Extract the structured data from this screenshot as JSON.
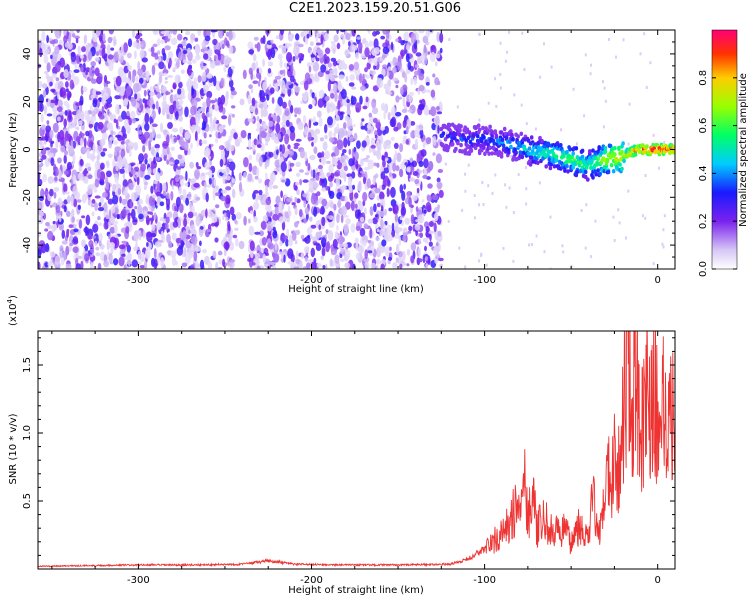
{
  "title": "C2E1.2023.159.20.51.G06",
  "chart_data": [
    {
      "type": "heatmap",
      "xlabel": "Height of straight line (km)",
      "ylabel": "Frequency (Hz)",
      "xlim": [
        -358,
        10
      ],
      "ylim": [
        -50,
        50
      ],
      "xticks": [
        -300,
        -200,
        -100,
        0
      ],
      "xtick_labels": [
        "-300",
        "-200",
        "-100",
        "0"
      ],
      "yticks": [
        -40,
        -20,
        0,
        20,
        40
      ],
      "ytick_labels": [
        "-40",
        "-20",
        "0",
        "20",
        "40"
      ],
      "colorbar": {
        "label": "Normalized spectral amplitude",
        "range": [
          0,
          1
        ],
        "ticks": [
          0,
          0.2,
          0.4,
          0.6,
          0.8
        ],
        "tick_labels": [
          "0.0",
          "0.2",
          "0.4",
          "0.6",
          "0.8"
        ],
        "colormap": "hsv-rainbow"
      },
      "noise_region": {
        "x": [
          -358,
          -125
        ],
        "y": [
          -50,
          50
        ],
        "amplitude": [
          0.05,
          0.3
        ]
      },
      "signal_track": {
        "x": [
          -125,
          -110,
          -100,
          -90,
          -80,
          -70,
          -60,
          -50,
          -40,
          -35,
          -30,
          -20,
          -15,
          -10,
          0,
          10
        ],
        "y": [
          6,
          4,
          4,
          3,
          1,
          -1,
          -2,
          -4,
          -7,
          -5,
          -4,
          -3,
          -1,
          0,
          0,
          0
        ],
        "amplitude": [
          0.3,
          0.35,
          0.35,
          0.4,
          0.45,
          0.5,
          0.55,
          0.6,
          0.55,
          0.6,
          0.7,
          0.75,
          0.85,
          0.9,
          0.95,
          0.9
        ]
      },
      "grid": false
    },
    {
      "type": "line",
      "xlabel": "Height of straight line (km)",
      "ylabel": "SNR (10 * v/v)",
      "yscale_label": "(x10",
      "yscale_exp": "4",
      "yscale_close": ")",
      "xlim": [
        -358,
        10
      ],
      "ylim": [
        0,
        17500
      ],
      "xticks": [
        -300,
        -200,
        -100,
        0
      ],
      "xtick_labels": [
        "-300",
        "-200",
        "-100",
        "0"
      ],
      "yticks": [
        5000,
        10000,
        15000
      ],
      "ytick_labels": [
        "0.5",
        "1.0",
        "1.5"
      ],
      "series": [
        {
          "color": "#ee3333",
          "x": [
            -358,
            -330,
            -300,
            -270,
            -240,
            -225,
            -210,
            -180,
            -150,
            -120,
            -110,
            -100,
            -90,
            -85,
            -80,
            -77,
            -75,
            -72,
            -70,
            -65,
            -60,
            -55,
            -50,
            -45,
            -40,
            -37,
            -35,
            -32,
            -30,
            -27,
            -25,
            -22,
            -20,
            -18,
            -17,
            -15,
            -12,
            -10,
            -7,
            -5,
            -2,
            0,
            3,
            5,
            8,
            10
          ],
          "y": [
            200,
            250,
            300,
            300,
            350,
            600,
            350,
            300,
            300,
            350,
            700,
            1500,
            2500,
            3500,
            5000,
            7000,
            4000,
            5500,
            3000,
            3500,
            2500,
            3000,
            2000,
            3500,
            2000,
            6000,
            2500,
            3000,
            8000,
            6000,
            9000,
            7000,
            12000,
            14000,
            17500,
            11000,
            15000,
            8000,
            14000,
            11000,
            13500,
            10500,
            12500,
            11000,
            12000,
            11000
          ],
          "amplitude_noise": 0.35
        }
      ],
      "grid": false
    }
  ]
}
